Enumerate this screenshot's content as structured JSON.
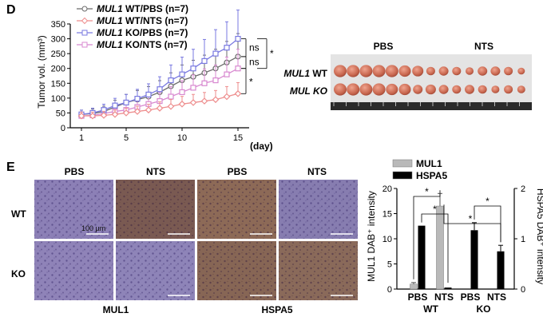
{
  "panel_d": {
    "letter": "D",
    "photo": {
      "header_left": "PBS",
      "header_right": "NTS",
      "row1_gene": "MUL1",
      "row1_suffix": " WT",
      "row2_label": "MUL KO"
    }
  },
  "panel_e": {
    "letter": "E",
    "col_headers": [
      "PBS",
      "NTS",
      "PBS",
      "NTS"
    ],
    "row_labels": [
      "WT",
      "KO"
    ],
    "scale_label": "100 µm",
    "group_labels": [
      "MUL1",
      "HSPA5"
    ]
  },
  "colors": {
    "wt_pbs": "#6b6b6b",
    "wt_nts": "#ee8e8e",
    "ko_pbs": "#7a7ae0",
    "ko_nts": "#d889d0",
    "mul1_bar": "#b9b9b9",
    "hspa5_bar": "#000000",
    "ihc_purple": "#8d7fb4",
    "ihc_brown": "#8a6655"
  },
  "chart_data": [
    {
      "type": "line",
      "id": "tumor_volume",
      "ylabel": "Tumor vol. (mm³)",
      "xunit": "(day)",
      "x_ticks": [
        1,
        5,
        10,
        15
      ],
      "y_ticks": [
        0,
        50,
        100,
        150,
        200,
        250,
        300,
        350
      ],
      "ylim": [
        0,
        350
      ],
      "xlim": [
        0,
        16
      ],
      "x": [
        1,
        2,
        3,
        4,
        5,
        6,
        7,
        8,
        9,
        10,
        11,
        12,
        13,
        14,
        15
      ],
      "series": [
        {
          "gene": "MUL1",
          "suffix": " WT/PBS (n=7)",
          "color_key": "wt_pbs",
          "marker": "circle",
          "values": [
            45,
            48,
            55,
            70,
            85,
            95,
            105,
            120,
            140,
            160,
            172,
            185,
            200,
            220,
            240
          ]
        },
        {
          "gene": "MUL1",
          "suffix": " WT/NTS (n=7)",
          "color_key": "wt_nts",
          "marker": "diamond",
          "values": [
            40,
            40,
            42,
            45,
            50,
            55,
            60,
            66,
            72,
            80,
            85,
            90,
            95,
            105,
            115
          ]
        },
        {
          "gene": "MUL1",
          "suffix": " KO/PBS (n=7)",
          "color_key": "ko_pbs",
          "marker": "square",
          "values": [
            45,
            50,
            60,
            75,
            85,
            98,
            112,
            130,
            160,
            180,
            200,
            225,
            250,
            270,
            300
          ]
        },
        {
          "gene": "MUL1",
          "suffix": " KO/NTS (n=7)",
          "color_key": "ko_nts",
          "marker": "square",
          "values": [
            40,
            42,
            48,
            55,
            60,
            70,
            80,
            90,
            105,
            120,
            135,
            150,
            160,
            180,
            200
          ]
        }
      ],
      "annotations": [
        {
          "text": "ns",
          "between": [
            "KO/PBS",
            "WT/PBS"
          ]
        },
        {
          "text": "ns",
          "between": [
            "WT/PBS",
            "KO/NTS"
          ]
        },
        {
          "text": "*",
          "between": [
            "KO/NTS",
            "WT/NTS"
          ]
        },
        {
          "text": "*",
          "between": [
            "KO/PBS",
            "KO/NTS"
          ]
        }
      ]
    },
    {
      "type": "bar",
      "id": "dab_intensity",
      "left_ylabel": "MUL1 DAB⁺ intensity",
      "right_ylabel": "HSPA5 DAB⁺ intensity",
      "left_ylim": [
        0,
        20
      ],
      "right_ylim": [
        0,
        2
      ],
      "left_ticks": [
        0,
        5,
        10,
        15,
        20
      ],
      "right_ticks": [
        0,
        1,
        2
      ],
      "categories": [
        "PBS",
        "NTS",
        "PBS",
        "NTS"
      ],
      "groups": [
        "WT",
        "KO"
      ],
      "legend_position": "top",
      "series": [
        {
          "name": "MUL1",
          "color_key": "mul1_bar",
          "axis": "left",
          "values": [
            1.0,
            16.5,
            0,
            0
          ]
        },
        {
          "name": "HSPA5",
          "color_key": "hspa5_bar",
          "axis": "right",
          "values": [
            1.26,
            0.03,
            1.17,
            0.75
          ]
        }
      ],
      "errors": {
        "MUL1": [
          0.3,
          2.5,
          0,
          0
        ],
        "HSPA5": [
          0.0,
          0.0,
          0.15,
          0.12
        ]
      },
      "significance": [
        "*",
        "*",
        "*",
        "*"
      ]
    }
  ]
}
